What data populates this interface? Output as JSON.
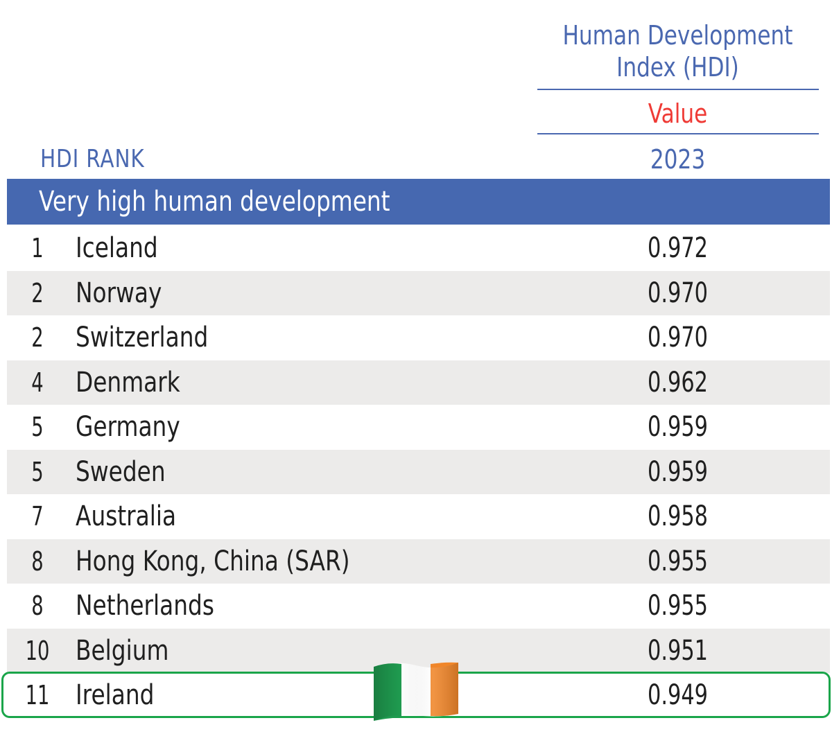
{
  "header": {
    "index_title": "Human Development Index (HDI)",
    "value_label": "Value",
    "year": "2023",
    "rank_label": "HDI RANK"
  },
  "group": {
    "label": "Very high human development"
  },
  "rows": [
    {
      "rank": "1",
      "country": "Iceland",
      "value": "0.972"
    },
    {
      "rank": "2",
      "country": "Norway",
      "value": "0.970"
    },
    {
      "rank": "2",
      "country": "Switzerland",
      "value": "0.970"
    },
    {
      "rank": "4",
      "country": "Denmark",
      "value": "0.962"
    },
    {
      "rank": "5",
      "country": "Germany",
      "value": "0.959"
    },
    {
      "rank": "5",
      "country": "Sweden",
      "value": "0.959"
    },
    {
      "rank": "7",
      "country": "Australia",
      "value": "0.958"
    },
    {
      "rank": "8",
      "country": "Hong Kong, China (SAR)",
      "value": "0.955"
    },
    {
      "rank": "8",
      "country": "Netherlands",
      "value": "0.955"
    },
    {
      "rank": "10",
      "country": "Belgium",
      "value": "0.951"
    },
    {
      "rank": "11",
      "country": "Ireland",
      "value": "0.949"
    }
  ],
  "highlight": {
    "country": "Ireland",
    "flag_icon": "ireland-flag-icon",
    "color": "#1aa54a"
  },
  "colors": {
    "accent": "#4668b0",
    "value_label": "#ef3b36",
    "row_alt": "#ecebea"
  }
}
